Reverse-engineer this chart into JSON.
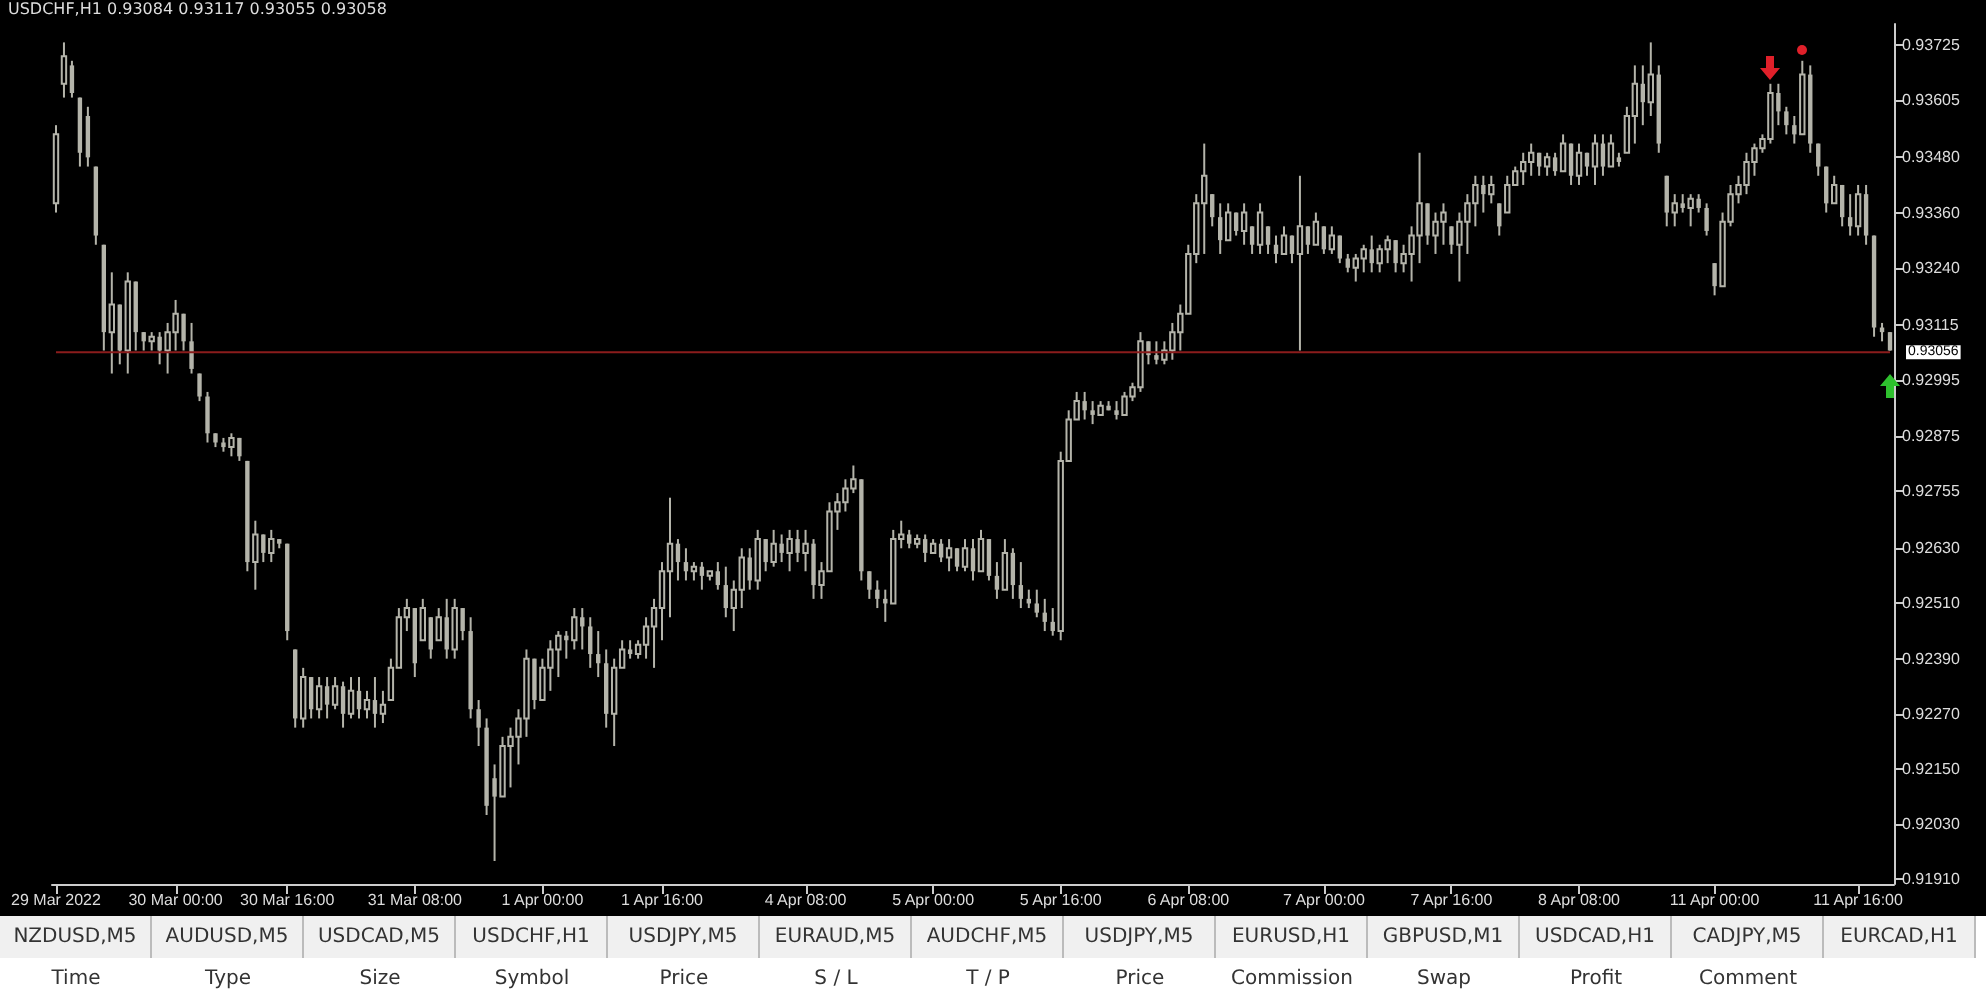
{
  "chart_data": {
    "type": "candlestick",
    "title": "USDCHF,H1  0.93084 0.93117 0.93055 0.93058",
    "color": "#b4b4aa",
    "categories": [
      "29 Mar 2022",
      null,
      null,
      null,
      null,
      null,
      null,
      null,
      null,
      null,
      null,
      null,
      null,
      null,
      null,
      "30 Mar 00:00",
      null,
      null,
      null,
      null,
      null,
      null,
      null,
      null,
      null,
      null,
      null,
      null,
      null,
      "30 Mar 16:00",
      null,
      null,
      null,
      null,
      null,
      null,
      null,
      null,
      null,
      null,
      null,
      null,
      null,
      null,
      null,
      "31 Mar 08:00",
      null,
      null,
      null,
      null,
      null,
      null,
      null,
      null,
      null,
      null,
      null,
      null,
      null,
      null,
      null,
      "1 Apr 00:00",
      null,
      null,
      null,
      null,
      null,
      null,
      null,
      null,
      null,
      null,
      null,
      null,
      null,
      null,
      "1 Apr 16:00",
      null,
      null,
      null,
      null,
      null,
      null,
      null,
      null,
      null,
      null,
      null,
      null,
      null,
      null,
      null,
      null,
      null,
      "4 Apr 08:00",
      null,
      null,
      null,
      null,
      null,
      null,
      null,
      null,
      null,
      null,
      null,
      null,
      null,
      null,
      null,
      "5 Apr 00:00",
      null,
      null,
      null,
      null,
      null,
      null,
      null,
      null,
      null,
      null,
      null,
      null,
      null,
      null,
      null,
      "5 Apr 16:00",
      null,
      null,
      null,
      null,
      null,
      null,
      null,
      null,
      null,
      null,
      null,
      null,
      null,
      null,
      null,
      "6 Apr 08:00",
      null,
      null,
      null,
      null,
      null,
      null,
      null,
      null,
      null,
      null,
      null,
      null,
      null,
      null,
      null,
      null,
      "7 Apr 00:00",
      null,
      null,
      null,
      null,
      null,
      null,
      null,
      null,
      null,
      null,
      null,
      null,
      null,
      null,
      null,
      "7 Apr 16:00",
      null,
      null,
      null,
      null,
      null,
      null,
      null,
      null,
      null,
      null,
      null,
      null,
      null,
      null,
      null,
      "8 Apr 08:00",
      null,
      null,
      null,
      null,
      null,
      null,
      null,
      null,
      null,
      null,
      null,
      null,
      null,
      null,
      null,
      null,
      "11 Apr 00:00",
      null,
      null,
      null,
      null,
      null,
      null,
      null,
      null,
      null,
      null,
      null,
      null,
      null,
      null,
      null,
      null,
      null,
      "11 Apr 16:00",
      null,
      null,
      null,
      null
    ],
    "ohlc": [
      [
        0.9338,
        0.9355,
        0.9336,
        0.9353
      ],
      [
        0.9364,
        0.9373,
        0.9361,
        0.937
      ],
      [
        0.9368,
        0.9369,
        0.9361,
        0.9362
      ],
      [
        0.9361,
        0.9361,
        0.9346,
        0.9349
      ],
      [
        0.9357,
        0.9359,
        0.9346,
        0.9348
      ],
      [
        0.9346,
        0.9346,
        0.9329,
        0.9331
      ],
      [
        0.9329,
        0.9329,
        0.9306,
        0.931
      ],
      [
        0.931,
        0.9323,
        0.9301,
        0.9316
      ],
      [
        0.9316,
        0.9316,
        0.9303,
        0.9306
      ],
      [
        0.9306,
        0.9323,
        0.9301,
        0.9321
      ],
      [
        0.9321,
        0.9321,
        0.9306,
        0.931
      ],
      [
        0.931,
        0.931,
        0.9306,
        0.9308
      ],
      [
        0.9308,
        0.931,
        0.9306,
        0.9309
      ],
      [
        0.9309,
        0.931,
        0.9303,
        0.9306
      ],
      [
        0.9306,
        0.9312,
        0.9301,
        0.931
      ],
      [
        0.931,
        0.9317,
        0.9306,
        0.9314
      ],
      [
        0.9314,
        0.9314,
        0.9306,
        0.9308
      ],
      [
        0.9308,
        0.9312,
        0.9301,
        0.9302
      ],
      [
        0.9301,
        0.9301,
        0.9295,
        0.9296
      ],
      [
        0.9296,
        0.9297,
        0.9286,
        0.9288
      ],
      [
        0.9288,
        0.9288,
        0.9285,
        0.9286
      ],
      [
        0.9286,
        0.9287,
        0.9284,
        0.9285
      ],
      [
        0.9285,
        0.9288,
        0.9283,
        0.9287
      ],
      [
        0.9287,
        0.9287,
        0.9282,
        0.9283
      ],
      [
        0.9282,
        0.9282,
        0.9258,
        0.926
      ],
      [
        0.926,
        0.9269,
        0.9254,
        0.9266
      ],
      [
        0.9266,
        0.9266,
        0.926,
        0.9262
      ],
      [
        0.9262,
        0.9267,
        0.926,
        0.9265
      ],
      [
        0.9265,
        0.9265,
        0.9263,
        0.9264
      ],
      [
        0.9264,
        0.9264,
        0.9243,
        0.9245
      ],
      [
        0.9241,
        0.9241,
        0.9224,
        0.9226
      ],
      [
        0.9226,
        0.9237,
        0.9224,
        0.9235
      ],
      [
        0.9235,
        0.9235,
        0.9226,
        0.9228
      ],
      [
        0.9228,
        0.9235,
        0.9226,
        0.9233
      ],
      [
        0.9233,
        0.9235,
        0.9226,
        0.9229
      ],
      [
        0.9229,
        0.9235,
        0.9228,
        0.9233
      ],
      [
        0.9233,
        0.9234,
        0.9224,
        0.9227
      ],
      [
        0.9227,
        0.9235,
        0.9226,
        0.9232
      ],
      [
        0.9232,
        0.9235,
        0.9226,
        0.9228
      ],
      [
        0.9228,
        0.9232,
        0.9226,
        0.923
      ],
      [
        0.923,
        0.9235,
        0.9224,
        0.9227
      ],
      [
        0.9227,
        0.9232,
        0.9225,
        0.9229
      ],
      [
        0.923,
        0.9239,
        0.923,
        0.9237
      ],
      [
        0.9237,
        0.925,
        0.9237,
        0.9248
      ],
      [
        0.9248,
        0.9252,
        0.9245,
        0.925
      ],
      [
        0.925,
        0.925,
        0.9235,
        0.9238
      ],
      [
        0.9243,
        0.9252,
        0.9243,
        0.925
      ],
      [
        0.9248,
        0.9248,
        0.9239,
        0.9241
      ],
      [
        0.9243,
        0.925,
        0.9243,
        0.9248
      ],
      [
        0.9248,
        0.9252,
        0.9239,
        0.9241
      ],
      [
        0.9241,
        0.9252,
        0.9239,
        0.925
      ],
      [
        0.925,
        0.925,
        0.9243,
        0.9245
      ],
      [
        0.9245,
        0.9248,
        0.9226,
        0.9228
      ],
      [
        0.9228,
        0.923,
        0.922,
        0.9224
      ],
      [
        0.9224,
        0.9226,
        0.9205,
        0.9207
      ],
      [
        0.9213,
        0.9216,
        0.9195,
        0.9209
      ],
      [
        0.9209,
        0.9222,
        0.9209,
        0.922
      ],
      [
        0.922,
        0.9224,
        0.9211,
        0.9222
      ],
      [
        0.9222,
        0.9228,
        0.9216,
        0.9226
      ],
      [
        0.9226,
        0.9241,
        0.9222,
        0.9239
      ],
      [
        0.9239,
        0.9239,
        0.9228,
        0.923
      ],
      [
        0.923,
        0.9239,
        0.923,
        0.9237
      ],
      [
        0.9237,
        0.9243,
        0.9232,
        0.9241
      ],
      [
        0.9241,
        0.9245,
        0.9235,
        0.9244
      ],
      [
        0.9244,
        0.9245,
        0.9239,
        0.9243
      ],
      [
        0.9243,
        0.925,
        0.9241,
        0.9248
      ],
      [
        0.9248,
        0.925,
        0.9241,
        0.9246
      ],
      [
        0.9246,
        0.9248,
        0.9237,
        0.924
      ],
      [
        0.924,
        0.9245,
        0.9235,
        0.9238
      ],
      [
        0.9238,
        0.9241,
        0.9224,
        0.9227
      ],
      [
        0.9227,
        0.9239,
        0.922,
        0.9237
      ],
      [
        0.9237,
        0.9243,
        0.9237,
        0.9241
      ],
      [
        0.9241,
        0.9243,
        0.9239,
        0.924
      ],
      [
        0.924,
        0.9243,
        0.9239,
        0.9242
      ],
      [
        0.9242,
        0.9248,
        0.9239,
        0.9246
      ],
      [
        0.9246,
        0.9252,
        0.9237,
        0.925
      ],
      [
        0.925,
        0.926,
        0.9243,
        0.9258
      ],
      [
        0.9258,
        0.9274,
        0.9248,
        0.9264
      ],
      [
        0.9264,
        0.9265,
        0.9256,
        0.926
      ],
      [
        0.926,
        0.9263,
        0.9256,
        0.9258
      ],
      [
        0.9258,
        0.926,
        0.9256,
        0.9259
      ],
      [
        0.9259,
        0.926,
        0.9254,
        0.9257
      ],
      [
        0.9257,
        0.9258,
        0.9256,
        0.9258
      ],
      [
        0.9258,
        0.926,
        0.9254,
        0.9255
      ],
      [
        0.9255,
        0.9259,
        0.9248,
        0.925
      ],
      [
        0.925,
        0.9256,
        0.9245,
        0.9254
      ],
      [
        0.9254,
        0.9263,
        0.925,
        0.9261
      ],
      [
        0.9261,
        0.9263,
        0.9254,
        0.9256
      ],
      [
        0.9256,
        0.9267,
        0.9254,
        0.9265
      ],
      [
        0.9265,
        0.9265,
        0.9258,
        0.926
      ],
      [
        0.926,
        0.9267,
        0.9259,
        0.9264
      ],
      [
        0.9264,
        0.9266,
        0.926,
        0.9262
      ],
      [
        0.9262,
        0.9267,
        0.9258,
        0.9265
      ],
      [
        0.9265,
        0.9267,
        0.926,
        0.9262
      ],
      [
        0.9262,
        0.9267,
        0.9258,
        0.9264
      ],
      [
        0.9264,
        0.9265,
        0.9252,
        0.9255
      ],
      [
        0.9255,
        0.926,
        0.9252,
        0.9258
      ],
      [
        0.9258,
        0.9273,
        0.9258,
        0.9271
      ],
      [
        0.9271,
        0.9275,
        0.9267,
        0.9273
      ],
      [
        0.9273,
        0.9278,
        0.9271,
        0.9276
      ],
      [
        0.9276,
        0.9281,
        0.9275,
        0.9278
      ],
      [
        0.9278,
        0.9278,
        0.9256,
        0.9258
      ],
      [
        0.9258,
        0.9258,
        0.9252,
        0.9254
      ],
      [
        0.9254,
        0.9256,
        0.925,
        0.9252
      ],
      [
        0.9252,
        0.9254,
        0.9247,
        0.9251
      ],
      [
        0.9251,
        0.9267,
        0.9251,
        0.9265
      ],
      [
        0.9265,
        0.9269,
        0.9263,
        0.9266
      ],
      [
        0.9266,
        0.9267,
        0.9263,
        0.9264
      ],
      [
        0.9264,
        0.9266,
        0.9263,
        0.9265
      ],
      [
        0.9265,
        0.9266,
        0.926,
        0.9262
      ],
      [
        0.9262,
        0.9265,
        0.9262,
        0.9264
      ],
      [
        0.9264,
        0.9265,
        0.926,
        0.9261
      ],
      [
        0.9261,
        0.9265,
        0.9258,
        0.9263
      ],
      [
        0.9263,
        0.9263,
        0.9258,
        0.9259
      ],
      [
        0.9259,
        0.9265,
        0.9258,
        0.9263
      ],
      [
        0.9263,
        0.9265,
        0.9256,
        0.9258
      ],
      [
        0.9258,
        0.9267,
        0.9258,
        0.9265
      ],
      [
        0.9265,
        0.9265,
        0.9256,
        0.9257
      ],
      [
        0.9257,
        0.926,
        0.9252,
        0.9254
      ],
      [
        0.9254,
        0.9265,
        0.9254,
        0.9262
      ],
      [
        0.9262,
        0.9263,
        0.9252,
        0.9255
      ],
      [
        0.9255,
        0.926,
        0.925,
        0.9252
      ],
      [
        0.9252,
        0.9254,
        0.925,
        0.9251
      ],
      [
        0.9251,
        0.9254,
        0.9248,
        0.9249
      ],
      [
        0.9249,
        0.9252,
        0.9245,
        0.9247
      ],
      [
        0.9247,
        0.925,
        0.9244,
        0.9245
      ],
      [
        0.9245,
        0.9284,
        0.9243,
        0.9282
      ],
      [
        0.9282,
        0.9293,
        0.9282,
        0.9291
      ],
      [
        0.9291,
        0.9297,
        0.9291,
        0.9295
      ],
      [
        0.9295,
        0.9297,
        0.9291,
        0.9293
      ],
      [
        0.9293,
        0.9295,
        0.929,
        0.9292
      ],
      [
        0.9292,
        0.9295,
        0.9292,
        0.9294
      ],
      [
        0.9294,
        0.9295,
        0.9293,
        0.9293
      ],
      [
        0.9293,
        0.9295,
        0.9291,
        0.9292
      ],
      [
        0.9292,
        0.9297,
        0.9292,
        0.9296
      ],
      [
        0.9296,
        0.9299,
        0.9295,
        0.9298
      ],
      [
        0.9298,
        0.931,
        0.9297,
        0.9308
      ],
      [
        0.9308,
        0.9308,
        0.9303,
        0.9305
      ],
      [
        0.9305,
        0.9308,
        0.9303,
        0.9304
      ],
      [
        0.9304,
        0.9308,
        0.9303,
        0.9306
      ],
      [
        0.9306,
        0.9312,
        0.9304,
        0.931
      ],
      [
        0.931,
        0.9316,
        0.9306,
        0.9314
      ],
      [
        0.9314,
        0.9329,
        0.9314,
        0.9327
      ],
      [
        0.9327,
        0.934,
        0.9325,
        0.9338
      ],
      [
        0.9338,
        0.9351,
        0.9327,
        0.9344
      ],
      [
        0.934,
        0.934,
        0.9333,
        0.9335
      ],
      [
        0.9335,
        0.9338,
        0.9327,
        0.933
      ],
      [
        0.933,
        0.9338,
        0.933,
        0.9336
      ],
      [
        0.9336,
        0.9336,
        0.9331,
        0.9332
      ],
      [
        0.9332,
        0.9338,
        0.9329,
        0.9336
      ],
      [
        0.9333,
        0.9333,
        0.9327,
        0.9329
      ],
      [
        0.9329,
        0.9338,
        0.9327,
        0.9336
      ],
      [
        0.9333,
        0.9333,
        0.9327,
        0.9329
      ],
      [
        0.9329,
        0.9331,
        0.9325,
        0.9327
      ],
      [
        0.9327,
        0.9333,
        0.9327,
        0.9331
      ],
      [
        0.9331,
        0.9331,
        0.9325,
        0.9327
      ],
      [
        0.9327,
        0.9344,
        0.9306,
        0.9333
      ],
      [
        0.9333,
        0.9333,
        0.9327,
        0.9329
      ],
      [
        0.9329,
        0.9336,
        0.9329,
        0.9334
      ],
      [
        0.9333,
        0.9333,
        0.9327,
        0.9328
      ],
      [
        0.9328,
        0.9333,
        0.9327,
        0.9331
      ],
      [
        0.9331,
        0.9331,
        0.9325,
        0.9326
      ],
      [
        0.9326,
        0.9327,
        0.9323,
        0.9324
      ],
      [
        0.9324,
        0.9327,
        0.9321,
        0.9326
      ],
      [
        0.9326,
        0.9329,
        0.9323,
        0.9328
      ],
      [
        0.9328,
        0.9331,
        0.9323,
        0.9325
      ],
      [
        0.9325,
        0.9329,
        0.9323,
        0.9328
      ],
      [
        0.9328,
        0.9331,
        0.9325,
        0.933
      ],
      [
        0.933,
        0.933,
        0.9323,
        0.9325
      ],
      [
        0.9325,
        0.9329,
        0.9323,
        0.9327
      ],
      [
        0.9327,
        0.9333,
        0.9321,
        0.9331
      ],
      [
        0.9331,
        0.9349,
        0.9325,
        0.9338
      ],
      [
        0.9338,
        0.9338,
        0.9329,
        0.9331
      ],
      [
        0.9331,
        0.9336,
        0.9327,
        0.9334
      ],
      [
        0.9334,
        0.9338,
        0.9329,
        0.9336
      ],
      [
        0.9333,
        0.9333,
        0.9327,
        0.9329
      ],
      [
        0.9329,
        0.9336,
        0.9321,
        0.9334
      ],
      [
        0.9334,
        0.934,
        0.9327,
        0.9338
      ],
      [
        0.9338,
        0.9344,
        0.9333,
        0.9342
      ],
      [
        0.9342,
        0.9344,
        0.9336,
        0.934
      ],
      [
        0.934,
        0.9344,
        0.9338,
        0.9342
      ],
      [
        0.9338,
        0.9338,
        0.9331,
        0.9333
      ],
      [
        0.9336,
        0.9344,
        0.9336,
        0.9342
      ],
      [
        0.9342,
        0.9346,
        0.9342,
        0.9345
      ],
      [
        0.9345,
        0.9349,
        0.9342,
        0.9347
      ],
      [
        0.9347,
        0.9351,
        0.9344,
        0.9349
      ],
      [
        0.9349,
        0.9349,
        0.9344,
        0.9346
      ],
      [
        0.9346,
        0.9349,
        0.9344,
        0.9348
      ],
      [
        0.9348,
        0.9349,
        0.9344,
        0.9345
      ],
      [
        0.9345,
        0.9353,
        0.9345,
        0.9351
      ],
      [
        0.9351,
        0.9351,
        0.9342,
        0.9344
      ],
      [
        0.9344,
        0.9351,
        0.9342,
        0.9349
      ],
      [
        0.9349,
        0.9349,
        0.9344,
        0.9346
      ],
      [
        0.9346,
        0.9353,
        0.9342,
        0.9351
      ],
      [
        0.9351,
        0.9353,
        0.9344,
        0.9346
      ],
      [
        0.9346,
        0.9353,
        0.9346,
        0.9351
      ],
      [
        0.9348,
        0.9349,
        0.9346,
        0.9347
      ],
      [
        0.9349,
        0.9359,
        0.9349,
        0.9357
      ],
      [
        0.9357,
        0.9368,
        0.9351,
        0.9364
      ],
      [
        0.9364,
        0.9368,
        0.9355,
        0.936
      ],
      [
        0.936,
        0.9373,
        0.9357,
        0.9366
      ],
      [
        0.9366,
        0.9368,
        0.9349,
        0.9351
      ],
      [
        0.9344,
        0.9344,
        0.9333,
        0.9336
      ],
      [
        0.9336,
        0.934,
        0.9333,
        0.9338
      ],
      [
        0.9338,
        0.934,
        0.9336,
        0.9337
      ],
      [
        0.9337,
        0.934,
        0.9333,
        0.9339
      ],
      [
        0.9339,
        0.934,
        0.9336,
        0.9337
      ],
      [
        0.9337,
        0.9338,
        0.9331,
        0.9332
      ],
      [
        0.9325,
        0.9325,
        0.9318,
        0.932
      ],
      [
        0.932,
        0.9336,
        0.932,
        0.9334
      ],
      [
        0.9334,
        0.9342,
        0.9333,
        0.934
      ],
      [
        0.934,
        0.9344,
        0.9338,
        0.9342
      ],
      [
        0.9342,
        0.9349,
        0.934,
        0.9347
      ],
      [
        0.9347,
        0.9351,
        0.9344,
        0.935
      ],
      [
        0.935,
        0.9353,
        0.9349,
        0.9352
      ],
      [
        0.9352,
        0.9364,
        0.9351,
        0.9362
      ],
      [
        0.9362,
        0.9364,
        0.9355,
        0.9358
      ],
      [
        0.9358,
        0.9359,
        0.9353,
        0.9355
      ],
      [
        0.9355,
        0.9357,
        0.9351,
        0.9353
      ],
      [
        0.9353,
        0.9369,
        0.9353,
        0.9366
      ],
      [
        0.9366,
        0.9368,
        0.9349,
        0.9351
      ],
      [
        0.9351,
        0.9351,
        0.9344,
        0.9346
      ],
      [
        0.9346,
        0.9346,
        0.9336,
        0.9338
      ],
      [
        0.9338,
        0.9344,
        0.9338,
        0.9342
      ],
      [
        0.9342,
        0.9342,
        0.9333,
        0.9335
      ],
      [
        0.9335,
        0.934,
        0.9331,
        0.9333
      ],
      [
        0.9333,
        0.9342,
        0.9331,
        0.934
      ],
      [
        0.934,
        0.9342,
        0.9329,
        0.9331
      ],
      [
        0.9331,
        0.9331,
        0.9309,
        0.9311
      ],
      [
        0.9311,
        0.9312,
        0.9308,
        0.931
      ],
      [
        0.931,
        0.931,
        0.9306,
        0.9306
      ]
    ],
    "ylim": [
      0.919,
      0.9377
    ],
    "yticks": [
      0.93725,
      0.93605,
      {
        "value": 0.9348,
        "label": "0.93480"
      },
      {
        "value": 0.9336,
        "label": "0.93360"
      },
      {
        "value": 0.9324,
        "label": "0.93240"
      },
      0.93115,
      0.92995,
      0.92875,
      0.92755,
      {
        "value": 0.9263,
        "label": "0.92630"
      },
      {
        "value": 0.9251,
        "label": "0.92510"
      },
      {
        "value": 0.9239,
        "label": "0.92390"
      },
      {
        "value": 0.9227,
        "label": "0.92270"
      },
      {
        "value": 0.9215,
        "label": "0.92150"
      },
      {
        "value": 0.9203,
        "label": "0.92030"
      },
      {
        "value": 0.9191,
        "label": "0.91910"
      }
    ],
    "ref_lines": [
      {
        "axis": "y",
        "value": 0.93056,
        "label": "0.93056",
        "color": "#8b1c1c"
      }
    ],
    "annotations": [
      "NZDUSD,M5",
      "AUDUSD,M5",
      "USDCAD,M5",
      "USDCHF,H1",
      "USDJPY,M5",
      "EURAUD,M5",
      "AUDCHF,M5",
      "USDJPY,M5",
      "EURUSD,H1",
      "GBPUSD,M1",
      "USDCAD,H1",
      "CADJPY,M5",
      "EURCAD,H1",
      "Time",
      "Type",
      "Size",
      "Symbol",
      "Price",
      "S / L",
      "T / P",
      "Price",
      "Commission",
      "Swap",
      "Profit",
      "Comment"
    ]
  }
}
